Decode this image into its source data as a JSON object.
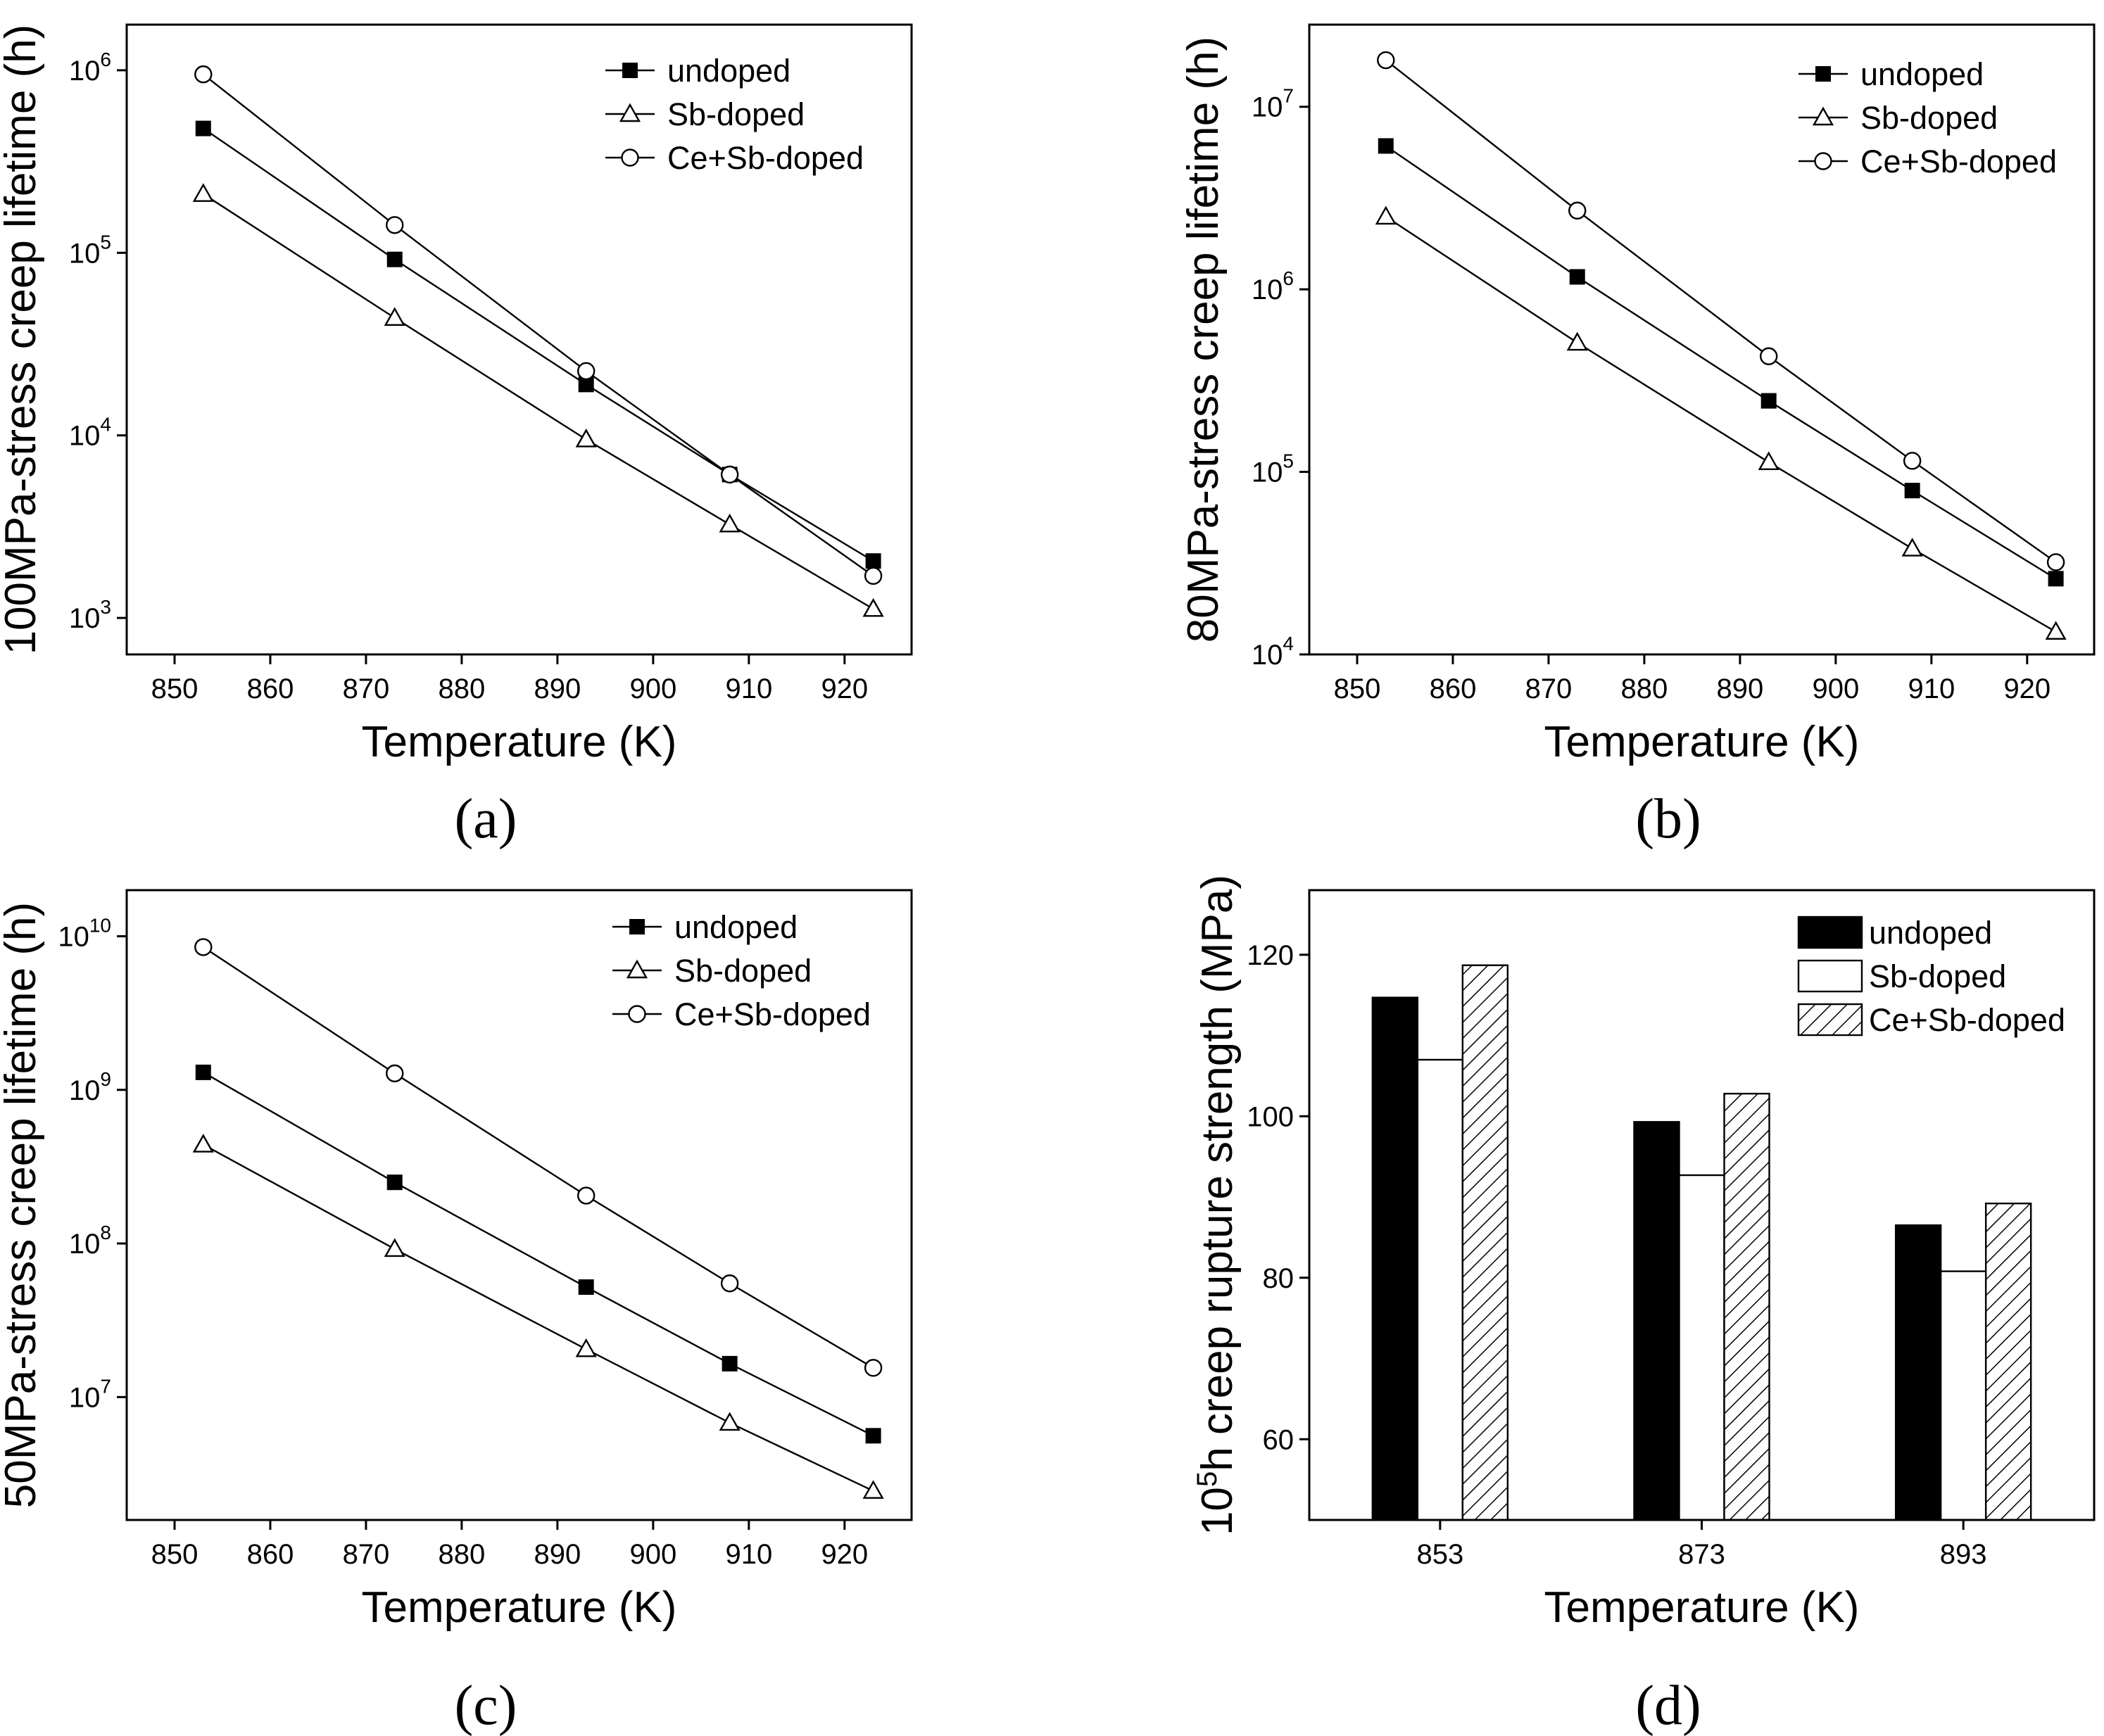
{
  "figure_captions": [
    "(a)",
    "(b)",
    "(c)",
    "(d)"
  ],
  "chart_data": [
    {
      "id": "a",
      "type": "line",
      "scale": "log",
      "caption": "(a)",
      "xlabel": "Temperature (K)",
      "ylabel": "100MPa-stress creep lifetime (h)",
      "xlim": [
        845,
        927
      ],
      "ylim_log10": [
        2.8,
        6.25
      ],
      "xticks": [
        850,
        860,
        870,
        880,
        890,
        900,
        910,
        920
      ],
      "yticks": [
        {
          "base": "10",
          "exp": "3",
          "pow": 3
        },
        {
          "base": "10",
          "exp": "4",
          "pow": 4
        },
        {
          "base": "10",
          "exp": "5",
          "pow": 5
        },
        {
          "base": "10",
          "exp": "6",
          "pow": 6
        }
      ],
      "x": [
        853,
        873,
        893,
        908,
        923
      ],
      "legend_position": "top-right",
      "series": [
        {
          "name": "undoped",
          "marker": "square",
          "values": [
            480000,
            92000,
            19000,
            6100,
            2050
          ]
        },
        {
          "name": "Sb-doped",
          "marker": "triangle",
          "values": [
            210000,
            44000,
            9500,
            3250,
            1120
          ]
        },
        {
          "name": "Ce+Sb-doped",
          "marker": "circle",
          "values": [
            950000,
            142000,
            22500,
            6100,
            1700
          ]
        }
      ]
    },
    {
      "id": "b",
      "type": "line",
      "scale": "log",
      "caption": "(b)",
      "xlabel": "Temperature (K)",
      "ylabel": "80MPa-stress creep lifetime (h)",
      "xlim": [
        845,
        927
      ],
      "ylim_log10": [
        4.0,
        7.45
      ],
      "xticks": [
        850,
        860,
        870,
        880,
        890,
        900,
        910,
        920
      ],
      "yticks": [
        {
          "base": "10",
          "exp": "4",
          "pow": 4
        },
        {
          "base": "10",
          "exp": "5",
          "pow": 5
        },
        {
          "base": "10",
          "exp": "6",
          "pow": 6
        },
        {
          "base": "10",
          "exp": "7",
          "pow": 7
        }
      ],
      "x": [
        853,
        873,
        893,
        908,
        923
      ],
      "legend_position": "top-right",
      "series": [
        {
          "name": "undoped",
          "marker": "square",
          "values": [
            6100000,
            1170000,
            245000,
            79000,
            26000
          ]
        },
        {
          "name": "Sb-doped",
          "marker": "triangle",
          "values": [
            2500000,
            510000,
            113000,
            38000,
            13300
          ]
        },
        {
          "name": "Ce+Sb-doped",
          "marker": "circle",
          "values": [
            18000000,
            2700000,
            430000,
            115000,
            32000
          ]
        }
      ]
    },
    {
      "id": "c",
      "type": "line",
      "scale": "log",
      "caption": "(c)",
      "xlabel": "Temperature (K)",
      "ylabel": "50MPa-stress creep lifetime (h)",
      "xlim": [
        845,
        927
      ],
      "ylim_log10": [
        6.2,
        10.3
      ],
      "xticks": [
        850,
        860,
        870,
        880,
        890,
        900,
        910,
        920
      ],
      "yticks": [
        {
          "base": "10",
          "exp": "7",
          "pow": 7
        },
        {
          "base": "10",
          "exp": "8",
          "pow": 8
        },
        {
          "base": "10",
          "exp": "9",
          "pow": 9
        },
        {
          "base": "10",
          "exp": "10",
          "pow": 10
        }
      ],
      "x": [
        853,
        873,
        893,
        908,
        923
      ],
      "legend_position": "top-right",
      "series": [
        {
          "name": "undoped",
          "marker": "square",
          "values": [
            1300000000,
            250000000,
            52000000,
            16500000,
            5600000
          ]
        },
        {
          "name": "Sb-doped",
          "marker": "triangle",
          "values": [
            440000000,
            92000000,
            20500000,
            6800000,
            2450000
          ]
        },
        {
          "name": "Ce+Sb-doped",
          "marker": "circle",
          "values": [
            8500000000,
            1280000000,
            205000000,
            55000000,
            15500000
          ]
        }
      ]
    },
    {
      "id": "d",
      "type": "bar",
      "caption": "(d)",
      "xlabel": "Temperature (K)",
      "ylabel": {
        "pre": "10",
        "sup": "5",
        "post": "h creep rupture strength (MPa)"
      },
      "categories": [
        "853",
        "873",
        "893"
      ],
      "ylim": [
        50,
        128
      ],
      "yticks": [
        60,
        80,
        100,
        120
      ],
      "legend_position": "top-right",
      "series": [
        {
          "name": "undoped",
          "fill": "solid",
          "values": [
            114.7,
            99.3,
            86.5
          ]
        },
        {
          "name": "Sb-doped",
          "fill": "empty",
          "values": [
            107.0,
            92.7,
            80.8
          ]
        },
        {
          "name": "Ce+Sb-doped",
          "fill": "hatched",
          "values": [
            118.7,
            102.8,
            89.2
          ]
        }
      ]
    }
  ]
}
